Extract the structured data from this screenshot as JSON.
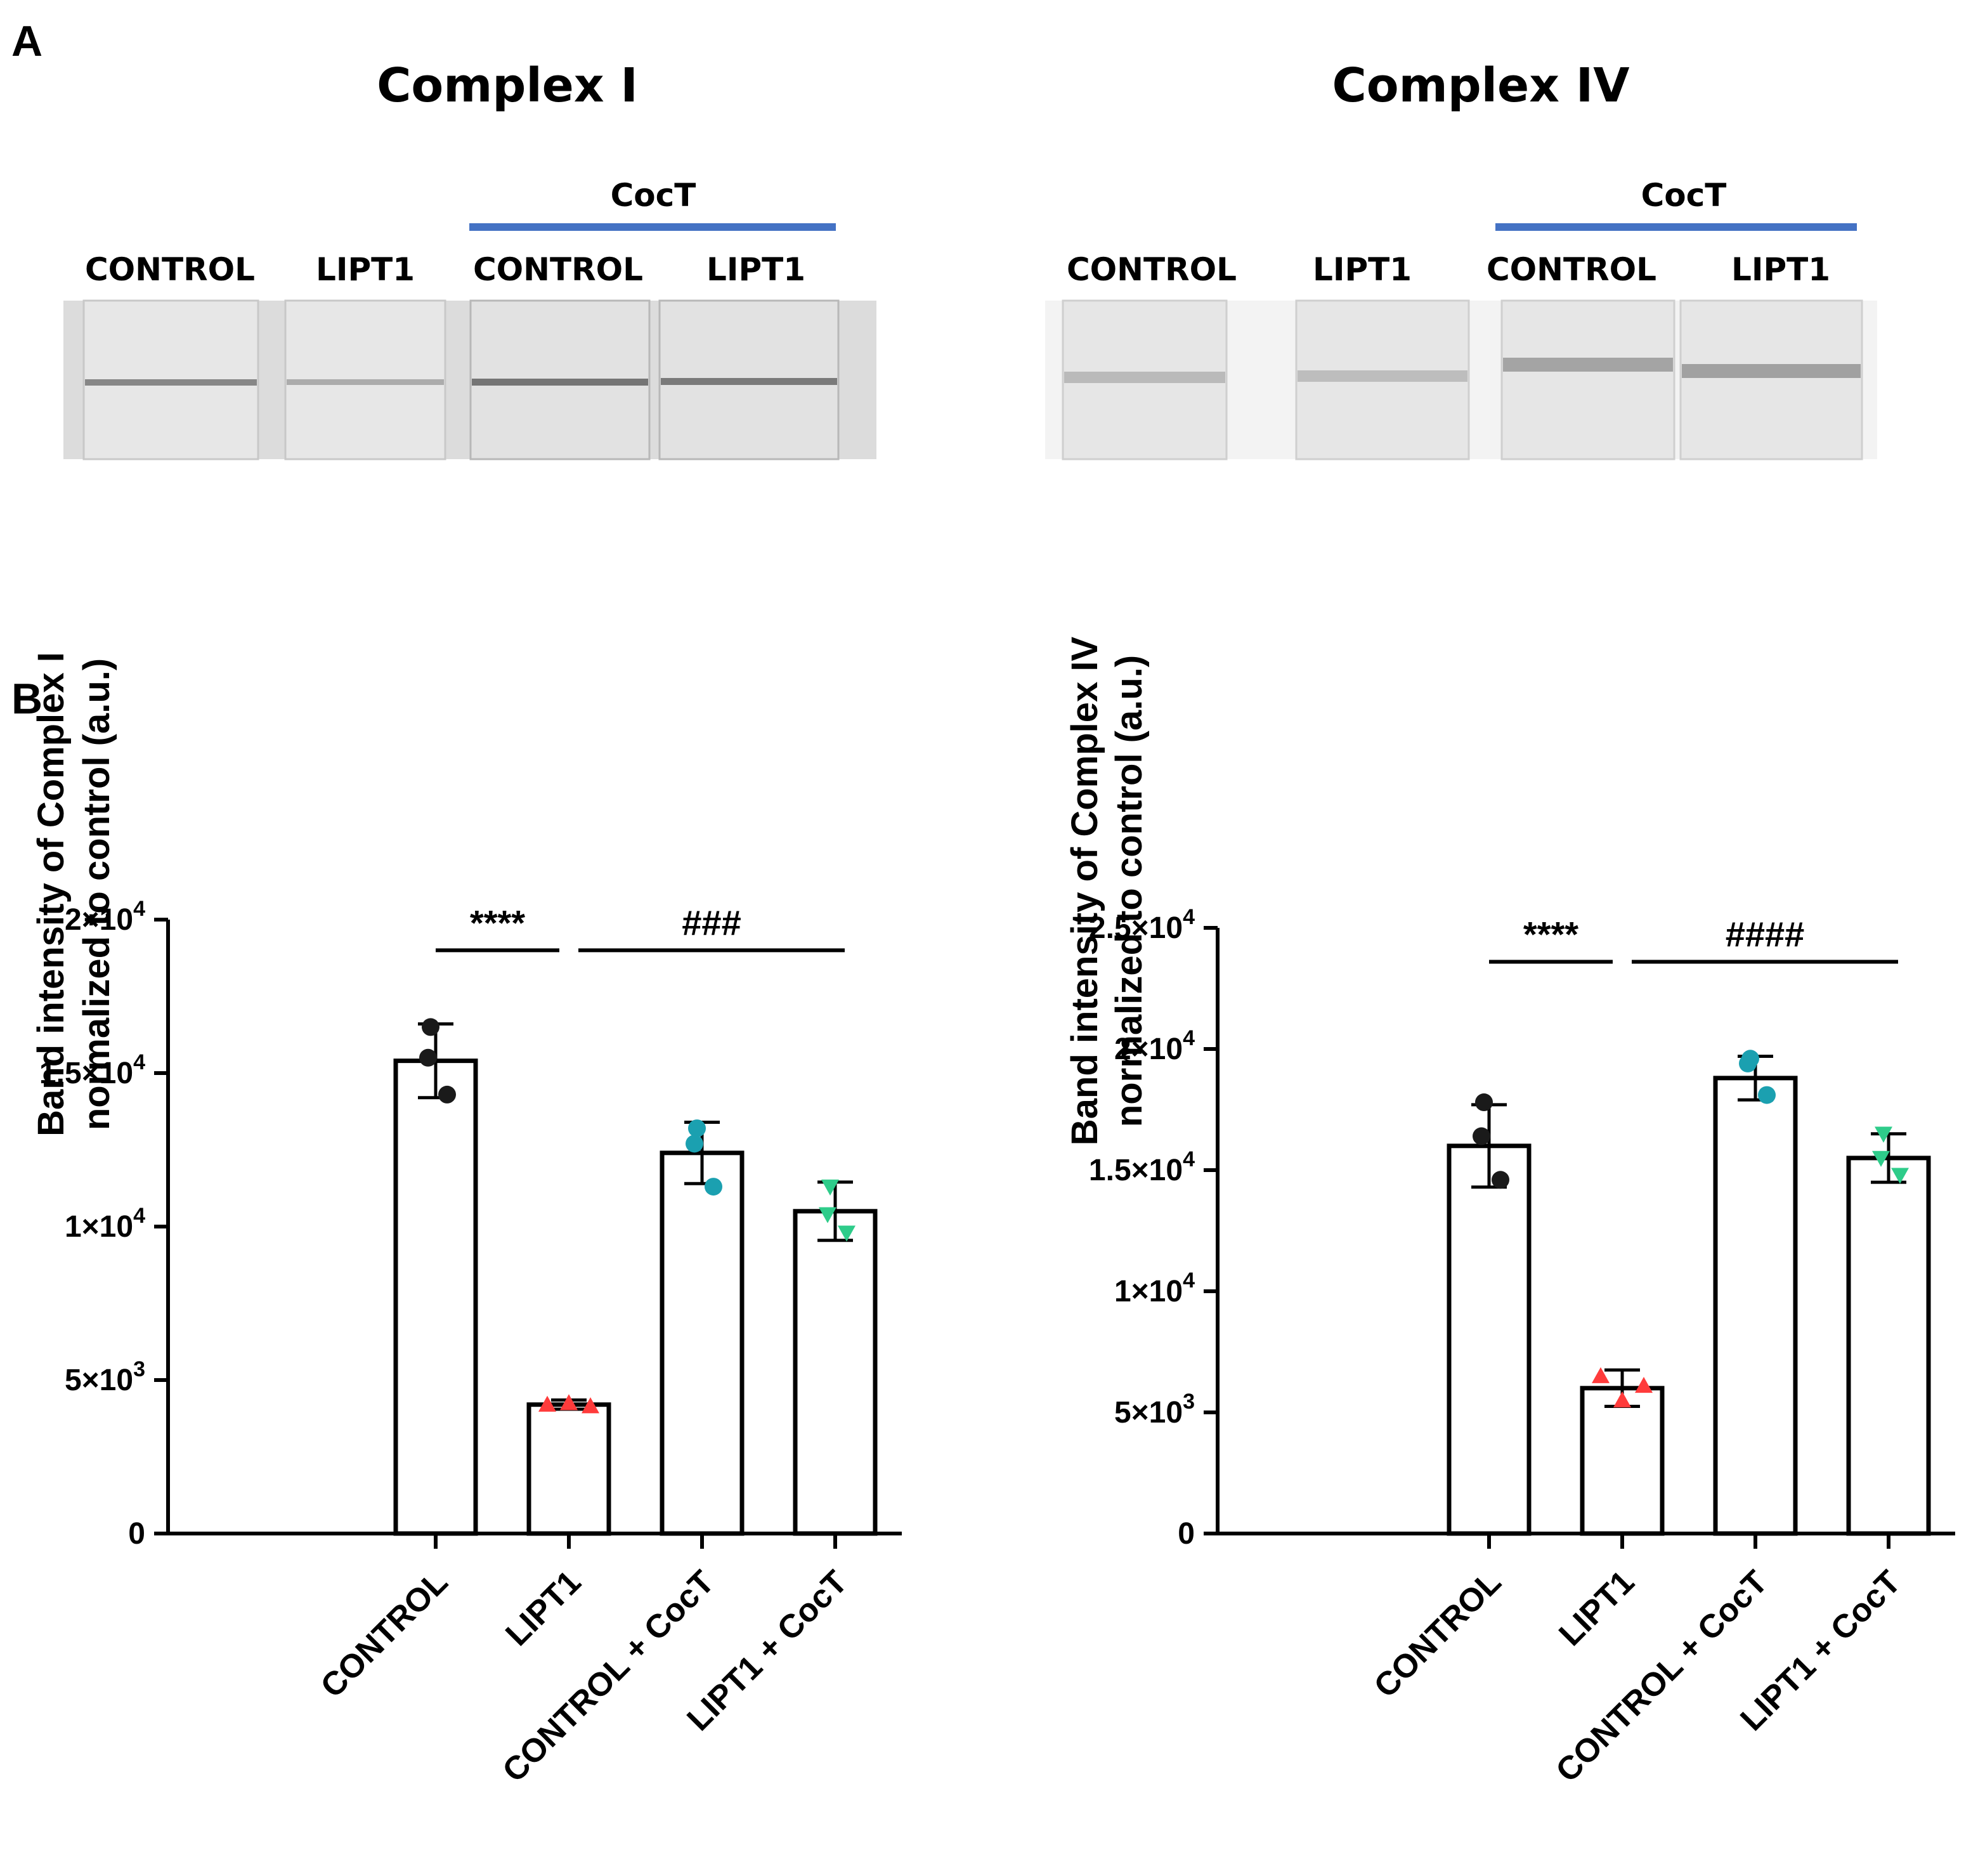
{
  "panel_a": {
    "letter": "A",
    "blots": [
      {
        "title": "Complex I",
        "treatment_label": "CocT",
        "treatment_color": "#4472c4",
        "lanes": [
          "CONTROL",
          "LIPT1",
          "CONTROL",
          "LIPT1"
        ],
        "band_intensity": [
          0.55,
          0.2,
          0.7,
          0.65
        ]
      },
      {
        "title": "Complex IV",
        "treatment_label": "CocT",
        "treatment_color": "#4472c4",
        "lanes": [
          "CONTROL",
          "LIPT1",
          "CONTROL",
          "LIPT1"
        ],
        "band_intensity": [
          0.3,
          0.25,
          0.6,
          0.65
        ]
      }
    ]
  },
  "panel_b": {
    "letter": "B"
  },
  "chart_data": [
    {
      "type": "bar",
      "ylabel": "Band intensity of Complex I",
      "ylabel2": "normalized to control (a.u.)",
      "categories": [
        "CONTROL",
        "LIPT1",
        "CONTROL + CocT",
        "LIPT1 + CocT"
      ],
      "values": [
        15400,
        4200,
        12400,
        10500
      ],
      "errors": [
        1200,
        150,
        1000,
        950
      ],
      "points": [
        [
          16500,
          14300,
          15500
        ],
        [
          4200,
          4250,
          4150
        ],
        [
          13200,
          11300,
          12700
        ],
        [
          11300,
          9800,
          10400
        ]
      ],
      "point_colors": [
        "#1a1a1a",
        "#ff3b3b",
        "#1ba0b0",
        "#2ecc8a"
      ],
      "point_shapes": [
        "circle",
        "triangle-up",
        "circle",
        "triangle-down"
      ],
      "ylim": [
        0,
        20000
      ],
      "yticks": [
        0,
        5000,
        10000,
        15000,
        20000
      ],
      "ytick_labels": [
        {
          "mant": "0",
          "exp": ""
        },
        {
          "mant": "5×10",
          "exp": "3"
        },
        {
          "mant": "1×10",
          "exp": "4"
        },
        {
          "mant": "1.5×10",
          "exp": "4"
        },
        {
          "mant": "2×10",
          "exp": "4"
        }
      ],
      "significance": [
        {
          "label": "****",
          "from": 0,
          "to": 1,
          "level": 19000
        },
        {
          "label": "###",
          "from": 1,
          "to": 3,
          "level": 19000
        }
      ]
    },
    {
      "type": "bar",
      "ylabel": "Band intensity of Complex IV",
      "ylabel2": "normalized to control (a.u.)",
      "categories": [
        "CONTROL",
        "LIPT1",
        "CONTROL + CocT",
        "LIPT1 + CocT"
      ],
      "values": [
        16000,
        6000,
        18800,
        15500
      ],
      "errors": [
        1700,
        750,
        900,
        1000
      ],
      "points": [
        [
          17800,
          14600,
          16400
        ],
        [
          6500,
          5500,
          6100
        ],
        [
          19600,
          18100,
          19400
        ],
        [
          16500,
          14800,
          15500
        ]
      ],
      "point_colors": [
        "#1a1a1a",
        "#ff3b3b",
        "#1ba0b0",
        "#2ecc8a"
      ],
      "point_shapes": [
        "circle",
        "triangle-up",
        "circle",
        "triangle-down"
      ],
      "ylim": [
        0,
        25000
      ],
      "yticks": [
        0,
        5000,
        10000,
        15000,
        20000,
        25000
      ],
      "ytick_labels": [
        {
          "mant": "0",
          "exp": ""
        },
        {
          "mant": "5×10",
          "exp": "3"
        },
        {
          "mant": "1×10",
          "exp": "4"
        },
        {
          "mant": "1.5×10",
          "exp": "4"
        },
        {
          "mant": "2×10",
          "exp": "4"
        },
        {
          "mant": "2.5×10",
          "exp": "4"
        }
      ],
      "significance": [
        {
          "label": "****",
          "from": 0,
          "to": 1,
          "level": 23600
        },
        {
          "label": "####",
          "from": 1,
          "to": 3,
          "level": 23600
        }
      ]
    }
  ]
}
